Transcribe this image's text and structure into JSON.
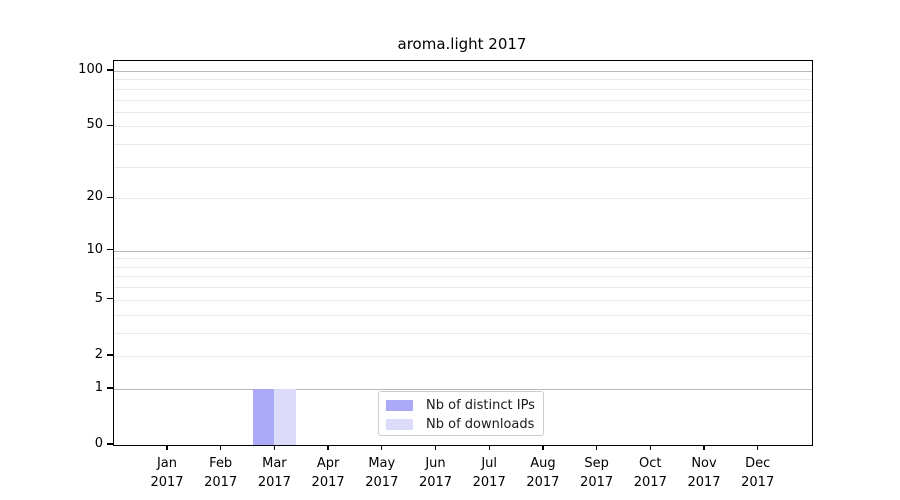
{
  "chart_data": {
    "type": "bar",
    "title": "aroma.light 2017",
    "categories": [
      "Jan",
      "Feb",
      "Mar",
      "Apr",
      "May",
      "Jun",
      "Jul",
      "Aug",
      "Sep",
      "Oct",
      "Nov",
      "Dec"
    ],
    "year_label": "2017",
    "series": [
      {
        "name": "Nb of distinct IPs",
        "color": "#aaaaf8",
        "values": [
          0,
          0,
          1,
          0,
          0,
          0,
          0,
          0,
          0,
          0,
          0,
          0
        ]
      },
      {
        "name": "Nb of downloads",
        "color": "#dcdcfa",
        "values": [
          0,
          0,
          1,
          0,
          0,
          0,
          0,
          0,
          0,
          0,
          0,
          0
        ]
      }
    ],
    "y_axis": {
      "scale": "log10(1+y)",
      "tick_values": [
        0,
        1,
        2,
        5,
        10,
        20,
        50,
        100
      ],
      "tick_labels": [
        "0",
        "1",
        "2",
        "5",
        "10",
        "20",
        "50",
        "100"
      ],
      "major_gridlines": [
        1,
        10,
        100
      ],
      "minor_gridlines": [
        2,
        3,
        4,
        5,
        6,
        7,
        8,
        9,
        20,
        30,
        40,
        50,
        60,
        70,
        80,
        90
      ]
    },
    "legend": {
      "position": "bottom-center",
      "entries": [
        "Nb of distinct IPs",
        "Nb of downloads"
      ]
    },
    "grid": "on"
  }
}
